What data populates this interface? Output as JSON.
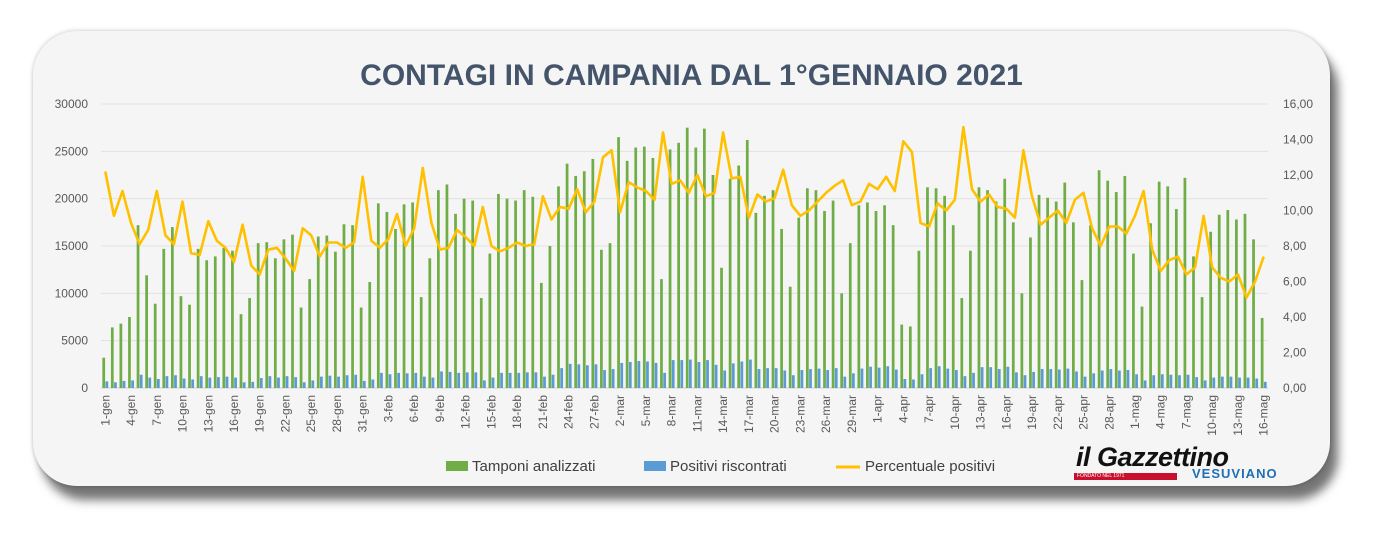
{
  "chart_data": {
    "type": "bar+line",
    "title": "CONTAGI IN CAMPANIA DAL 1°GENNAIO 2021",
    "left_axis": {
      "min": 0,
      "max": 30000,
      "ticks": [
        "0",
        "5000",
        "10000",
        "15000",
        "20000",
        "25000",
        "30000"
      ]
    },
    "right_axis": {
      "min": 0,
      "max": 16,
      "ticks": [
        "0,00",
        "2,00",
        "4,00",
        "6,00",
        "8,00",
        "10,00",
        "12,00",
        "14,00",
        "16,00"
      ]
    },
    "x_labels": [
      "1-gen",
      "4-gen",
      "7-gen",
      "10-gen",
      "13-gen",
      "16-gen",
      "19-gen",
      "22-gen",
      "25-gen",
      "28-gen",
      "31-gen",
      "3-feb",
      "6-feb",
      "9-feb",
      "12-feb",
      "15-feb",
      "18-feb",
      "21-feb",
      "24-feb",
      "27-feb",
      "2-mar",
      "5-mar",
      "8-mar",
      "11-mar",
      "14-mar",
      "17-mar",
      "20-mar",
      "23-mar",
      "26-mar",
      "29-mar",
      "1-apr",
      "4-apr",
      "7-apr",
      "10-apr",
      "13-apr",
      "16-apr",
      "19-apr",
      "22-apr",
      "25-apr",
      "28-apr",
      "1-mag",
      "4-mag",
      "7-mag",
      "10-mag",
      "13-mag",
      "16-mag"
    ],
    "colors": {
      "tamponi": "#70ad47",
      "positivi": "#5b9bd5",
      "percentuale": "#ffc000"
    },
    "series": [
      {
        "name": "Tamponi analizzati",
        "axis": "left",
        "kind": "bar",
        "values": [
          3200,
          6400,
          6800,
          7500,
          17200,
          11900,
          8900,
          14700,
          17000,
          9700,
          8800,
          14700,
          13500,
          13900,
          14800,
          14500,
          7800,
          9500,
          15300,
          15400,
          13700,
          15700,
          16200,
          8500,
          11500,
          16000,
          16100,
          14400,
          17300,
          17200,
          8500,
          11200,
          19500,
          18600,
          16800,
          19400,
          19600,
          9600,
          13700,
          20900,
          21500,
          18400,
          20000,
          19800,
          9500,
          14200,
          20500,
          20000,
          19800,
          20900,
          20200,
          11100,
          15000,
          21300,
          23700,
          22400,
          22900,
          24200,
          14600,
          15300,
          26500,
          24000,
          25400,
          25500,
          24300,
          11500,
          25200,
          25900,
          27500,
          25400,
          27400,
          22500,
          12700,
          22100,
          23500,
          26200,
          18500,
          20300,
          20900,
          16800,
          10700,
          18000,
          21100,
          20900,
          18700,
          19800,
          10000,
          15300,
          19300,
          19600,
          18700,
          19300,
          17200,
          6700,
          6500,
          14500,
          21200,
          21100,
          20300,
          17200,
          9500,
          14500,
          21200,
          20900,
          19700,
          22100,
          17500,
          10000,
          15900,
          20400,
          20100,
          19700,
          21700,
          17500,
          11400,
          17200,
          23000,
          21900,
          20700,
          22400,
          14200,
          8600,
          17400,
          21800,
          21300,
          18900,
          22200,
          13900,
          9600,
          16500,
          18300,
          18800,
          17800,
          18400,
          15700,
          7400
        ]
      },
      {
        "name": "Positivi riscontrati",
        "axis": "left",
        "kind": "bar",
        "values": [
          700,
          600,
          750,
          800,
          1400,
          1100,
          950,
          1250,
          1350,
          1000,
          900,
          1250,
          1100,
          1150,
          1200,
          1100,
          600,
          650,
          1050,
          1250,
          1100,
          1250,
          1150,
          600,
          800,
          1200,
          1300,
          1200,
          1350,
          1400,
          750,
          900,
          1600,
          1450,
          1600,
          1550,
          1600,
          1200,
          1100,
          1750,
          1700,
          1600,
          1650,
          1650,
          800,
          1100,
          1600,
          1600,
          1600,
          1650,
          1650,
          1200,
          1400,
          2100,
          2550,
          2500,
          2400,
          2500,
          1900,
          2000,
          2650,
          2750,
          2850,
          2800,
          2650,
          1600,
          2950,
          2950,
          3000,
          2750,
          2950,
          2450,
          1850,
          2600,
          2800,
          3000,
          2000,
          2100,
          2100,
          1850,
          1350,
          1900,
          2000,
          2050,
          1900,
          2100,
          1200,
          1550,
          2050,
          2250,
          2150,
          2300,
          1950,
          950,
          900,
          1450,
          2100,
          2300,
          2050,
          1900,
          1250,
          1600,
          2200,
          2200,
          2000,
          2250,
          1650,
          1350,
          1700,
          2000,
          2000,
          1950,
          2050,
          1750,
          1200,
          1550,
          1850,
          2000,
          1850,
          1900,
          1450,
          800,
          1350,
          1450,
          1400,
          1350,
          1400,
          1150,
          800,
          1100,
          1200,
          1200,
          1100,
          1100,
          1000,
          650
        ]
      },
      {
        "name": "Percentuale positivi",
        "axis": "right",
        "kind": "line",
        "values": [
          12.2,
          9.7,
          11.1,
          9.3,
          8.1,
          8.9,
          11.1,
          8.6,
          8.1,
          10.5,
          7.6,
          7.5,
          9.4,
          8.3,
          7.9,
          7.1,
          9.2,
          6.9,
          6.4,
          7.8,
          7.9,
          7.3,
          6.6,
          9.0,
          8.6,
          7.4,
          8.2,
          8.2,
          7.9,
          8.2,
          11.9,
          8.3,
          7.9,
          8.4,
          9.8,
          8.0,
          9.0,
          12.4,
          9.3,
          7.8,
          7.9,
          8.9,
          8.5,
          8.0,
          10.2,
          8.0,
          7.7,
          7.9,
          8.2,
          8.0,
          8.1,
          10.8,
          9.5,
          10.2,
          10.1,
          11.2,
          9.9,
          10.5,
          13.0,
          13.4,
          9.9,
          11.6,
          11.3,
          11.1,
          10.6,
          14.4,
          11.5,
          11.7,
          11.0,
          12.0,
          10.8,
          11.0,
          14.4,
          11.8,
          11.9,
          9.6,
          10.9,
          10.5,
          10.7,
          12.3,
          10.3,
          9.7,
          10.0,
          10.5,
          11.0,
          11.4,
          11.7,
          10.3,
          10.5,
          11.5,
          11.2,
          11.9,
          11.1,
          13.9,
          13.3,
          9.3,
          9.1,
          10.4,
          10.0,
          10.6,
          14.7,
          11.2,
          10.5,
          10.9,
          10.2,
          10.1,
          9.6,
          13.4,
          10.8,
          9.2,
          9.6,
          10.0,
          9.3,
          10.6,
          11.0,
          9.0,
          8.0,
          9.1,
          9.1,
          8.7,
          9.7,
          11.1,
          7.8,
          6.6,
          7.2,
          7.4,
          6.4,
          6.8,
          9.7,
          6.8,
          6.2,
          6.0,
          6.4,
          5.1,
          6.0,
          7.4
        ]
      }
    ],
    "legend": {
      "placement": "bottom"
    }
  },
  "logo": {
    "text": "il Gazzettino",
    "sub": "VESUVIANO",
    "tag": "FONDATO NEL 1971"
  }
}
